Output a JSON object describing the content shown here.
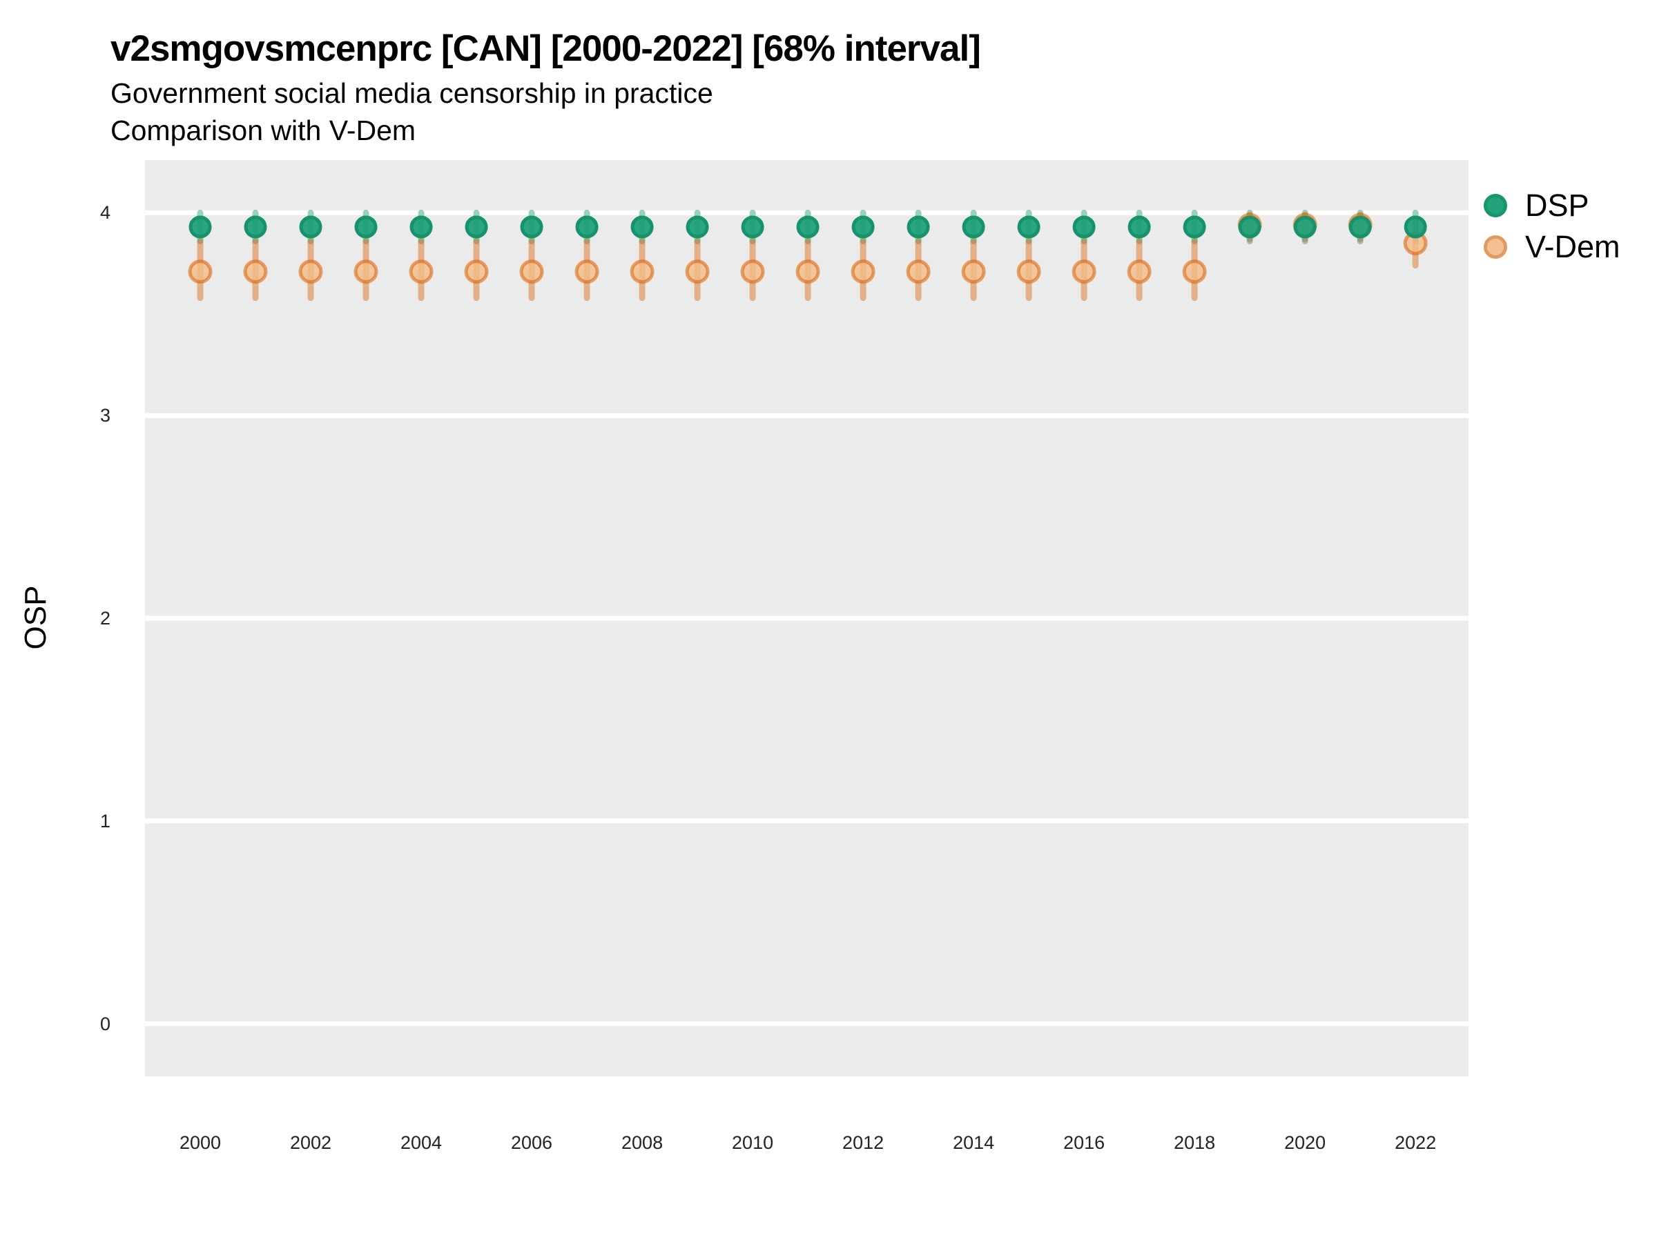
{
  "chart_data": {
    "type": "pointrange",
    "title": "v2smgovsmcenprc [CAN] [2000-2022] [68% interval]",
    "subtitle": "Government social media censorship in practice",
    "subtitle2": "Comparison with V-Dem",
    "xlabel": "",
    "ylabel": "OSP",
    "grid": "horizontal-major-only",
    "legend_position": "right",
    "xlim": [
      1999,
      2022.96
    ],
    "ylim": [
      -0.26,
      4.26
    ],
    "x_ticks": [
      2000,
      2002,
      2004,
      2006,
      2008,
      2010,
      2012,
      2014,
      2016,
      2018,
      2020,
      2022
    ],
    "y_ticks": [
      0,
      1,
      2,
      3,
      4
    ],
    "years": [
      2000,
      2001,
      2002,
      2003,
      2004,
      2005,
      2006,
      2007,
      2008,
      2009,
      2010,
      2011,
      2012,
      2013,
      2014,
      2015,
      2016,
      2017,
      2018,
      2019,
      2020,
      2021,
      2022
    ],
    "series": [
      {
        "name": "DSP",
        "est": [
          3.93,
          3.93,
          3.93,
          3.93,
          3.93,
          3.93,
          3.93,
          3.93,
          3.93,
          3.93,
          3.93,
          3.93,
          3.93,
          3.93,
          3.93,
          3.93,
          3.93,
          3.93,
          3.93,
          3.93,
          3.93,
          3.93,
          3.93
        ],
        "lo": [
          3.86,
          3.86,
          3.86,
          3.86,
          3.86,
          3.86,
          3.86,
          3.86,
          3.86,
          3.86,
          3.86,
          3.86,
          3.86,
          3.86,
          3.86,
          3.86,
          3.86,
          3.86,
          3.86,
          3.86,
          3.86,
          3.86,
          3.86
        ],
        "hi": [
          4.0,
          4.0,
          4.0,
          4.0,
          4.0,
          4.0,
          4.0,
          4.0,
          4.0,
          4.0,
          4.0,
          4.0,
          4.0,
          4.0,
          4.0,
          4.0,
          4.0,
          4.0,
          4.0,
          4.0,
          4.0,
          4.0,
          4.0
        ]
      },
      {
        "name": "V-Dem",
        "est": [
          3.71,
          3.71,
          3.71,
          3.71,
          3.71,
          3.71,
          3.71,
          3.71,
          3.71,
          3.71,
          3.71,
          3.71,
          3.71,
          3.71,
          3.71,
          3.71,
          3.71,
          3.71,
          3.71,
          3.94,
          3.94,
          3.94,
          3.85
        ],
        "lo": [
          3.58,
          3.58,
          3.58,
          3.58,
          3.58,
          3.58,
          3.58,
          3.58,
          3.58,
          3.58,
          3.58,
          3.58,
          3.58,
          3.58,
          3.58,
          3.58,
          3.58,
          3.58,
          3.58,
          3.87,
          3.87,
          3.87,
          3.74
        ],
        "hi": [
          3.86,
          3.86,
          3.86,
          3.86,
          3.86,
          3.86,
          3.86,
          3.86,
          3.86,
          3.86,
          3.86,
          3.86,
          3.86,
          3.86,
          3.86,
          3.86,
          3.86,
          3.86,
          3.86,
          3.99,
          3.99,
          3.99,
          3.95
        ]
      }
    ],
    "legend": {
      "entries": [
        {
          "label": "DSP"
        },
        {
          "label": "V-Dem"
        }
      ]
    },
    "colors": {
      "dsp_base": "#1B9E77",
      "vdem_base": "#D95F02",
      "dsp_point_fill": "rgba(27,158,119,0.92)",
      "dsp_point_stroke": "#17926B",
      "dsp_interval": "rgba(27,158,119,0.45)",
      "vdem_point_fill": "rgba(244,187,134,0.8)",
      "vdem_point_stroke": "rgba(217,95,2,0.55)",
      "vdem_interval": "rgba(217,95,2,0.42)",
      "panel_background": "#EBEBEB",
      "gridline": "#FFFFFF",
      "legend_dsp_fill": "#23A27B",
      "legend_dsp_stroke": "#15966C",
      "legend_vdem_fill": "#F3C096",
      "legend_vdem_stroke": "#E19A5F"
    }
  }
}
